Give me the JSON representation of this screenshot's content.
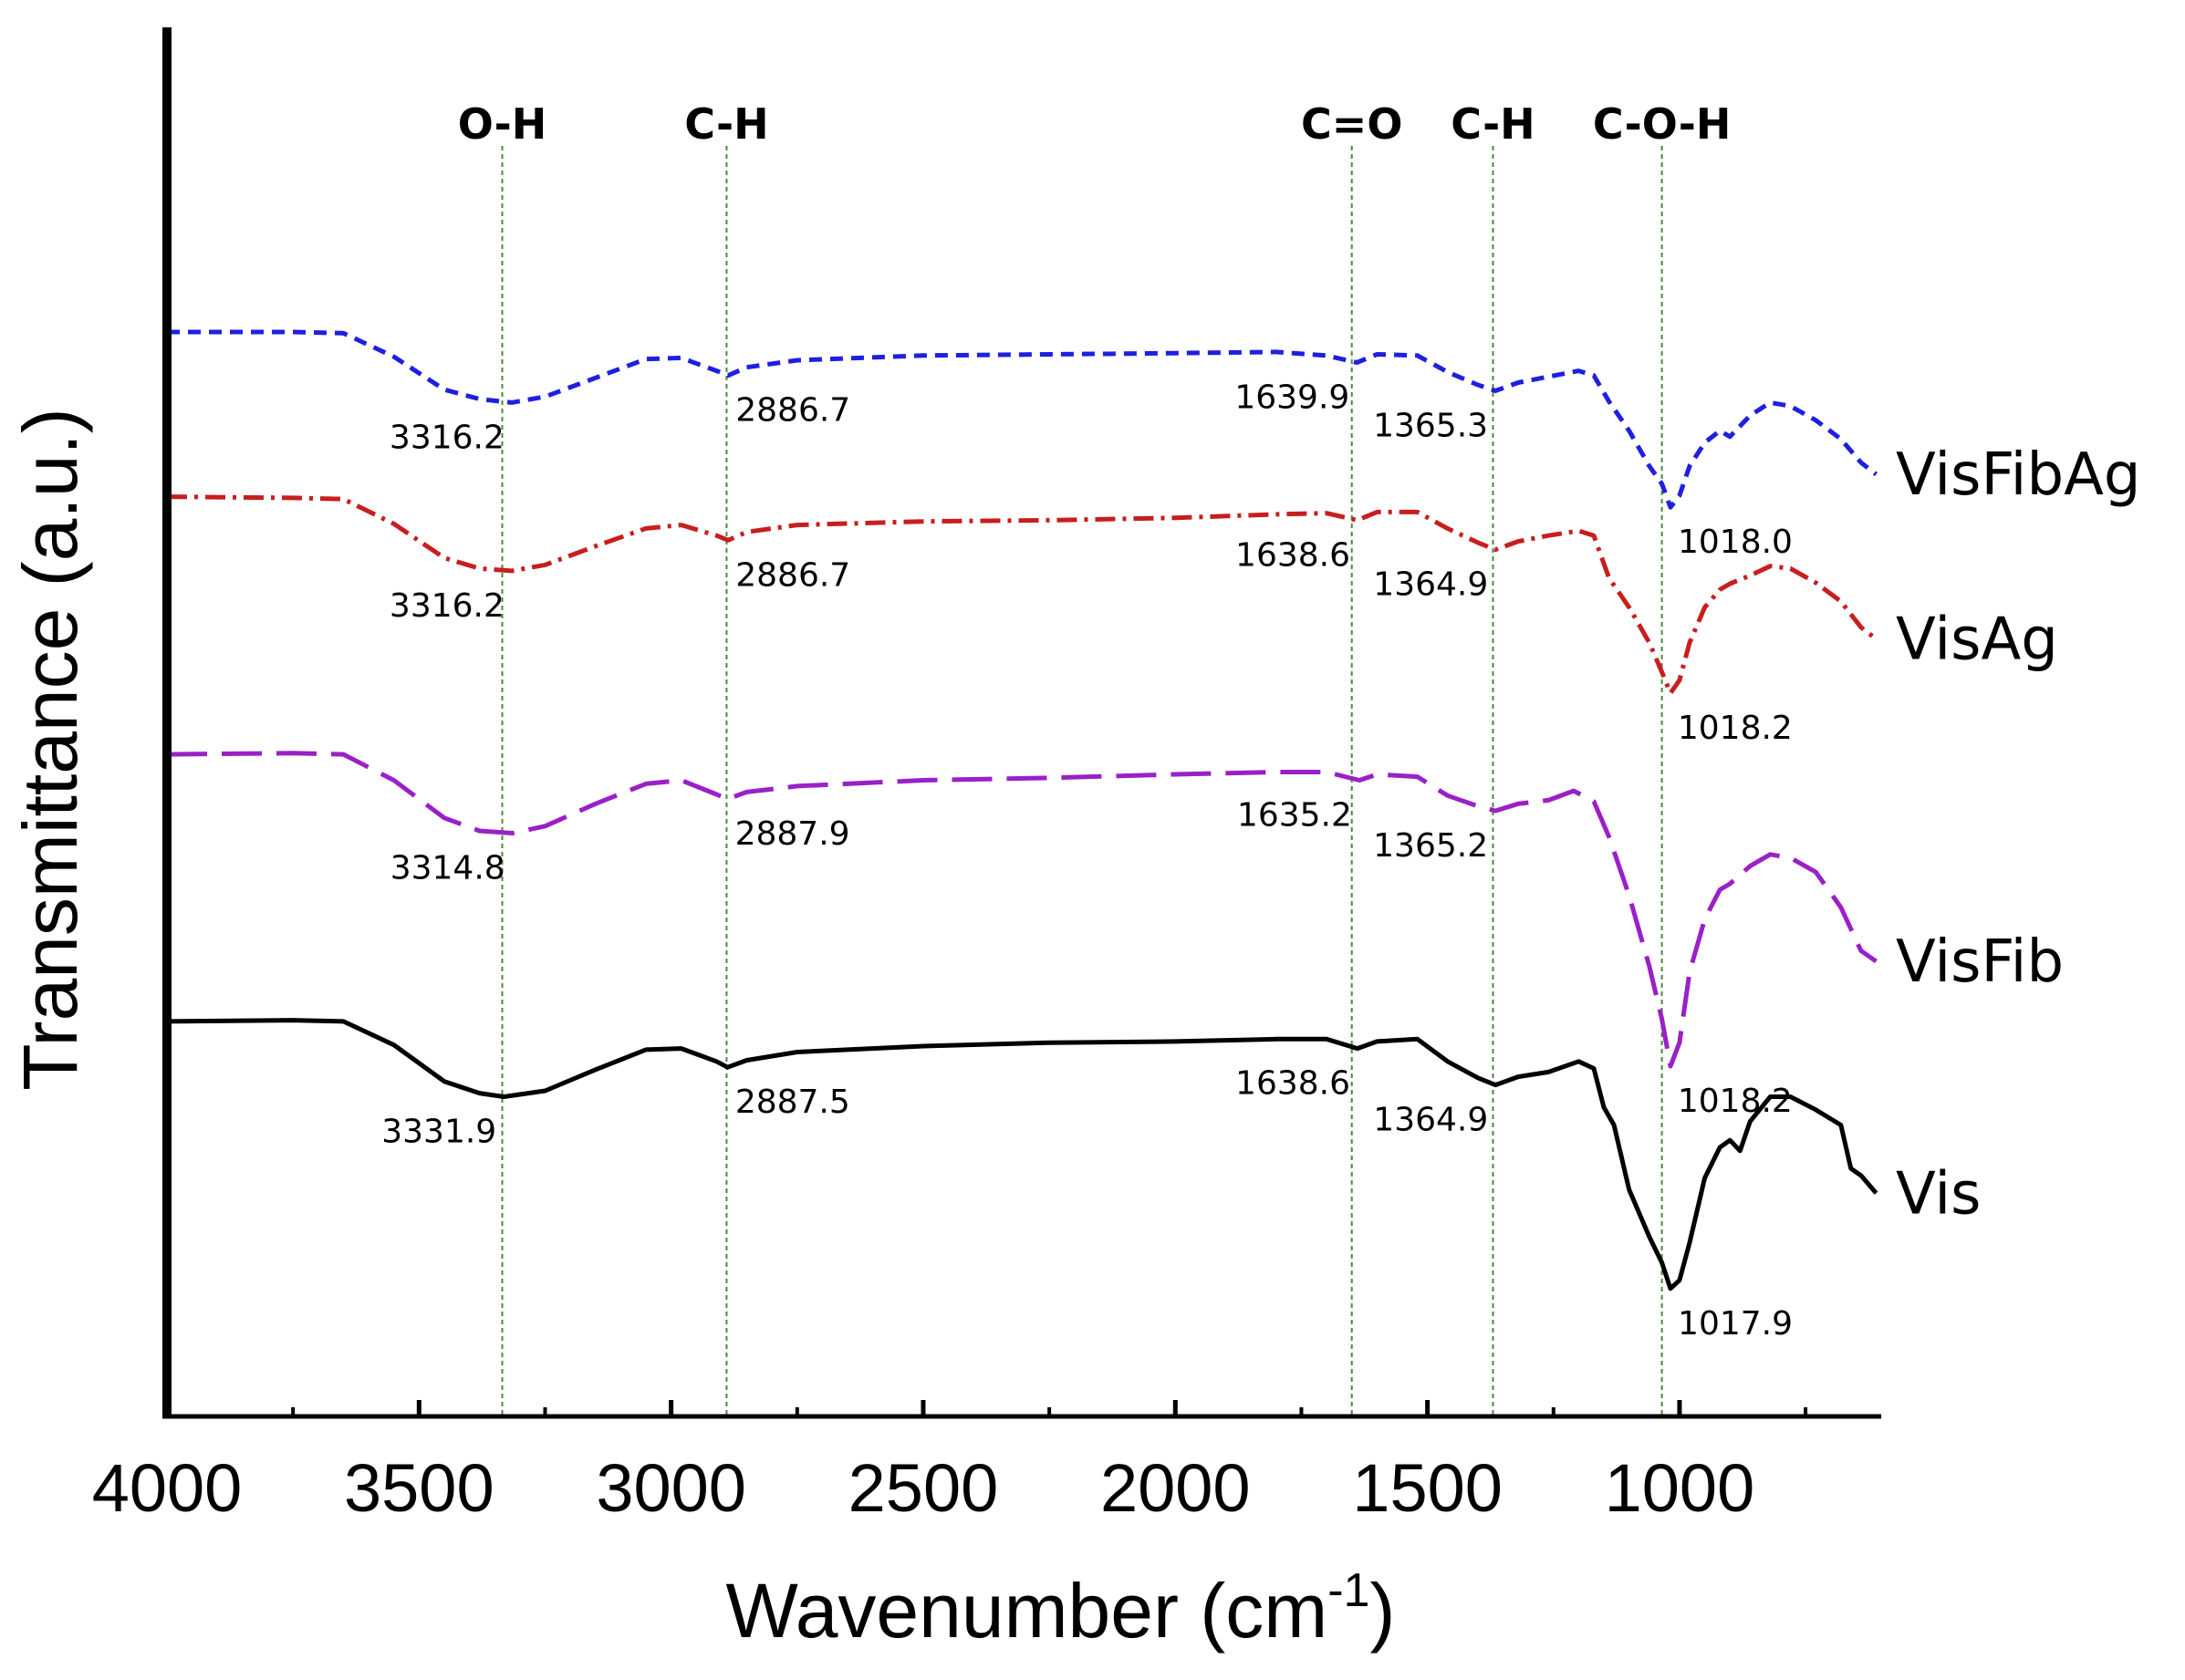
{
  "chart_data": {
    "type": "line",
    "xlabel": "Wavenumber (cm",
    "xlabel_superscript": "-1",
    "xlabel_suffix": ")",
    "ylabel": "Transmittance (a.u.)",
    "x_reversed": true,
    "xlim": [
      4000,
      600
    ],
    "ylim": [
      0,
      100
    ],
    "x_ticks": [
      4000,
      3500,
      3000,
      2500,
      2000,
      1500,
      1000
    ],
    "x_tick_labels": [
      "4000",
      "3500",
      "3000",
      "2500",
      "2000",
      "1500",
      "1000"
    ],
    "x_minor_ticks": [
      3750,
      3250,
      2750,
      2250,
      1750,
      1250,
      750
    ],
    "band_lines": [
      {
        "label": "O-H",
        "x": 3335
      },
      {
        "label": "C-H",
        "x": 2890
      },
      {
        "label": "C=O",
        "x": 1650
      },
      {
        "label": "C-H",
        "x": 1370
      },
      {
        "label": "C-O-H",
        "x": 1035
      }
    ],
    "series": [
      {
        "name": "VisFibAg",
        "label": "VisFibAg",
        "color": "#1f1fe0",
        "dash": "14 9",
        "points": [
          [
            4000,
            86.9
          ],
          [
            3750,
            86.9
          ],
          [
            3650,
            86.8
          ],
          [
            3550,
            84.8
          ],
          [
            3450,
            82.0
          ],
          [
            3380,
            81.2
          ],
          [
            3316,
            80.9
          ],
          [
            3250,
            81.4
          ],
          [
            3150,
            83.0
          ],
          [
            3050,
            84.6
          ],
          [
            2980,
            84.7
          ],
          [
            2910,
            83.6
          ],
          [
            2887,
            83.2
          ],
          [
            2850,
            83.9
          ],
          [
            2750,
            84.5
          ],
          [
            2500,
            84.9
          ],
          [
            2250,
            85.0
          ],
          [
            2000,
            85.1
          ],
          [
            1800,
            85.2
          ],
          [
            1700,
            84.9
          ],
          [
            1640,
            84.3
          ],
          [
            1600,
            85.0
          ],
          [
            1520,
            84.9
          ],
          [
            1460,
            83.5
          ],
          [
            1400,
            82.4
          ],
          [
            1365,
            81.9
          ],
          [
            1320,
            82.6
          ],
          [
            1260,
            83.1
          ],
          [
            1200,
            83.6
          ],
          [
            1170,
            83.2
          ],
          [
            1140,
            81.0
          ],
          [
            1100,
            78.5
          ],
          [
            1060,
            75.5
          ],
          [
            1035,
            74.0
          ],
          [
            1018,
            72.0
          ],
          [
            1000,
            73.0
          ],
          [
            980,
            75.5
          ],
          [
            950,
            77.5
          ],
          [
            920,
            78.5
          ],
          [
            900,
            78.0
          ],
          [
            860,
            79.8
          ],
          [
            820,
            80.9
          ],
          [
            780,
            80.6
          ],
          [
            730,
            79.4
          ],
          [
            680,
            77.8
          ],
          [
            640,
            75.8
          ],
          [
            610,
            74.8
          ]
        ]
      },
      {
        "name": "VisAg",
        "label": "VisAg",
        "color": "#c81e1e",
        "dash": "22 8 4 8",
        "points": [
          [
            4000,
            72.9
          ],
          [
            3750,
            72.8
          ],
          [
            3650,
            72.7
          ],
          [
            3550,
            70.6
          ],
          [
            3450,
            67.7
          ],
          [
            3380,
            66.8
          ],
          [
            3316,
            66.6
          ],
          [
            3250,
            67.1
          ],
          [
            3150,
            68.7
          ],
          [
            3050,
            70.2
          ],
          [
            2980,
            70.5
          ],
          [
            2910,
            69.6
          ],
          [
            2887,
            69.2
          ],
          [
            2850,
            69.9
          ],
          [
            2750,
            70.5
          ],
          [
            2500,
            70.8
          ],
          [
            2250,
            70.9
          ],
          [
            2000,
            71.1
          ],
          [
            1800,
            71.4
          ],
          [
            1700,
            71.5
          ],
          [
            1639,
            70.9
          ],
          [
            1600,
            71.6
          ],
          [
            1520,
            71.6
          ],
          [
            1460,
            70.2
          ],
          [
            1400,
            69.0
          ],
          [
            1365,
            68.4
          ],
          [
            1320,
            69.1
          ],
          [
            1260,
            69.6
          ],
          [
            1200,
            70.0
          ],
          [
            1170,
            69.6
          ],
          [
            1140,
            66.0
          ],
          [
            1100,
            63.5
          ],
          [
            1060,
            60.5
          ],
          [
            1035,
            58.0
          ],
          [
            1018,
            56.2
          ],
          [
            1000,
            57.3
          ],
          [
            980,
            60.5
          ],
          [
            950,
            63.5
          ],
          [
            920,
            65.0
          ],
          [
            900,
            65.5
          ],
          [
            860,
            66.2
          ],
          [
            820,
            67.0
          ],
          [
            780,
            66.8
          ],
          [
            730,
            65.6
          ],
          [
            680,
            64.0
          ],
          [
            640,
            61.8
          ],
          [
            610,
            60.8
          ]
        ]
      },
      {
        "name": "VisFib",
        "label": "VisFib",
        "color": "#9a20c8",
        "dash": "44 16",
        "points": [
          [
            4000,
            51.0
          ],
          [
            3750,
            51.1
          ],
          [
            3650,
            51.0
          ],
          [
            3550,
            48.8
          ],
          [
            3450,
            45.6
          ],
          [
            3380,
            44.5
          ],
          [
            3315,
            44.3
          ],
          [
            3250,
            44.9
          ],
          [
            3150,
            46.8
          ],
          [
            3050,
            48.5
          ],
          [
            2980,
            48.8
          ],
          [
            2910,
            47.6
          ],
          [
            2888,
            47.2
          ],
          [
            2850,
            47.8
          ],
          [
            2750,
            48.3
          ],
          [
            2500,
            48.8
          ],
          [
            2250,
            49.0
          ],
          [
            2000,
            49.3
          ],
          [
            1800,
            49.5
          ],
          [
            1700,
            49.5
          ],
          [
            1635,
            48.8
          ],
          [
            1600,
            49.3
          ],
          [
            1520,
            49.1
          ],
          [
            1460,
            47.5
          ],
          [
            1400,
            46.6
          ],
          [
            1365,
            46.2
          ],
          [
            1320,
            46.8
          ],
          [
            1260,
            47.1
          ],
          [
            1210,
            47.9
          ],
          [
            1170,
            47.0
          ],
          [
            1140,
            44.0
          ],
          [
            1100,
            39.0
          ],
          [
            1060,
            33.0
          ],
          [
            1035,
            28.5
          ],
          [
            1018,
            24.5
          ],
          [
            1000,
            26.5
          ],
          [
            980,
            32.5
          ],
          [
            950,
            37.0
          ],
          [
            920,
            39.5
          ],
          [
            900,
            40.0
          ],
          [
            860,
            41.5
          ],
          [
            820,
            42.5
          ],
          [
            780,
            42.2
          ],
          [
            730,
            41.0
          ],
          [
            680,
            38.0
          ],
          [
            640,
            34.3
          ],
          [
            610,
            33.4
          ]
        ]
      },
      {
        "name": "Vis",
        "label": "Vis",
        "color": "#000000",
        "dash": "",
        "points": [
          [
            4000,
            28.3
          ],
          [
            3750,
            28.4
          ],
          [
            3650,
            28.3
          ],
          [
            3550,
            26.3
          ],
          [
            3450,
            23.2
          ],
          [
            3380,
            22.2
          ],
          [
            3332,
            21.9
          ],
          [
            3250,
            22.4
          ],
          [
            3150,
            24.2
          ],
          [
            3050,
            25.9
          ],
          [
            2980,
            26.0
          ],
          [
            2910,
            24.9
          ],
          [
            2888,
            24.4
          ],
          [
            2850,
            25.0
          ],
          [
            2750,
            25.7
          ],
          [
            2500,
            26.2
          ],
          [
            2250,
            26.5
          ],
          [
            2000,
            26.6
          ],
          [
            1800,
            26.8
          ],
          [
            1700,
            26.8
          ],
          [
            1639,
            26.0
          ],
          [
            1600,
            26.6
          ],
          [
            1520,
            26.8
          ],
          [
            1460,
            24.9
          ],
          [
            1400,
            23.5
          ],
          [
            1365,
            22.9
          ],
          [
            1320,
            23.6
          ],
          [
            1260,
            24.0
          ],
          [
            1200,
            24.9
          ],
          [
            1170,
            24.3
          ],
          [
            1150,
            21.0
          ],
          [
            1130,
            19.5
          ],
          [
            1100,
            14.0
          ],
          [
            1060,
            10.0
          ],
          [
            1035,
            7.8
          ],
          [
            1018,
            5.6
          ],
          [
            1000,
            6.3
          ],
          [
            980,
            9.5
          ],
          [
            950,
            15.0
          ],
          [
            920,
            17.6
          ],
          [
            900,
            18.2
          ],
          [
            880,
            17.3
          ],
          [
            860,
            19.8
          ],
          [
            820,
            21.9
          ],
          [
            780,
            21.9
          ],
          [
            730,
            20.8
          ],
          [
            680,
            19.5
          ],
          [
            660,
            15.8
          ],
          [
            640,
            15.2
          ],
          [
            610,
            13.7
          ]
        ]
      }
    ],
    "annotations": [
      {
        "text": "3316.2",
        "x": 3316.2,
        "y": 80.9,
        "side": "left",
        "series": "VisFibAg"
      },
      {
        "text": "2886.7",
        "x": 2886.7,
        "y": 83.2,
        "side": "right",
        "series": "VisFibAg"
      },
      {
        "text": "1639.9",
        "x": 1639.9,
        "y": 84.3,
        "side": "left",
        "series": "VisFibAg"
      },
      {
        "text": "1365.3",
        "x": 1365.3,
        "y": 81.9,
        "side": "left",
        "series": "VisFibAg"
      },
      {
        "text": "1018.0",
        "x": 1018.0,
        "y": 72.0,
        "side": "right",
        "series": "VisFibAg"
      },
      {
        "text": "3316.2",
        "x": 3316.2,
        "y": 66.6,
        "side": "left",
        "series": "VisAg"
      },
      {
        "text": "2886.7",
        "x": 2886.7,
        "y": 69.2,
        "side": "right",
        "series": "VisAg"
      },
      {
        "text": "1638.6",
        "x": 1638.6,
        "y": 70.9,
        "side": "left",
        "series": "VisAg"
      },
      {
        "text": "1364.9",
        "x": 1364.9,
        "y": 68.4,
        "side": "left",
        "series": "VisAg"
      },
      {
        "text": "1018.2",
        "x": 1018.2,
        "y": 56.2,
        "side": "right",
        "series": "VisAg"
      },
      {
        "text": "3314.8",
        "x": 3314.8,
        "y": 44.3,
        "side": "left",
        "series": "VisFib"
      },
      {
        "text": "2887.9",
        "x": 2887.9,
        "y": 47.2,
        "side": "right",
        "series": "VisFib"
      },
      {
        "text": "1635.2",
        "x": 1635.2,
        "y": 48.8,
        "side": "left",
        "series": "VisFib"
      },
      {
        "text": "1365.2",
        "x": 1365.2,
        "y": 46.2,
        "side": "left",
        "series": "VisFib"
      },
      {
        "text": "1018.2",
        "x": 1018.2,
        "y": 24.5,
        "side": "right",
        "series": "VisFib"
      },
      {
        "text": "3331.9",
        "x": 3331.9,
        "y": 21.9,
        "side": "left",
        "series": "Vis"
      },
      {
        "text": "2887.5",
        "x": 2887.5,
        "y": 24.4,
        "side": "right",
        "series": "Vis"
      },
      {
        "text": "1638.6",
        "x": 1638.6,
        "y": 26.0,
        "side": "left",
        "series": "Vis"
      },
      {
        "text": "1364.9",
        "x": 1364.9,
        "y": 22.9,
        "side": "left",
        "series": "Vis"
      },
      {
        "text": "1017.9",
        "x": 1017.9,
        "y": 5.6,
        "side": "right",
        "series": "Vis"
      }
    ]
  }
}
